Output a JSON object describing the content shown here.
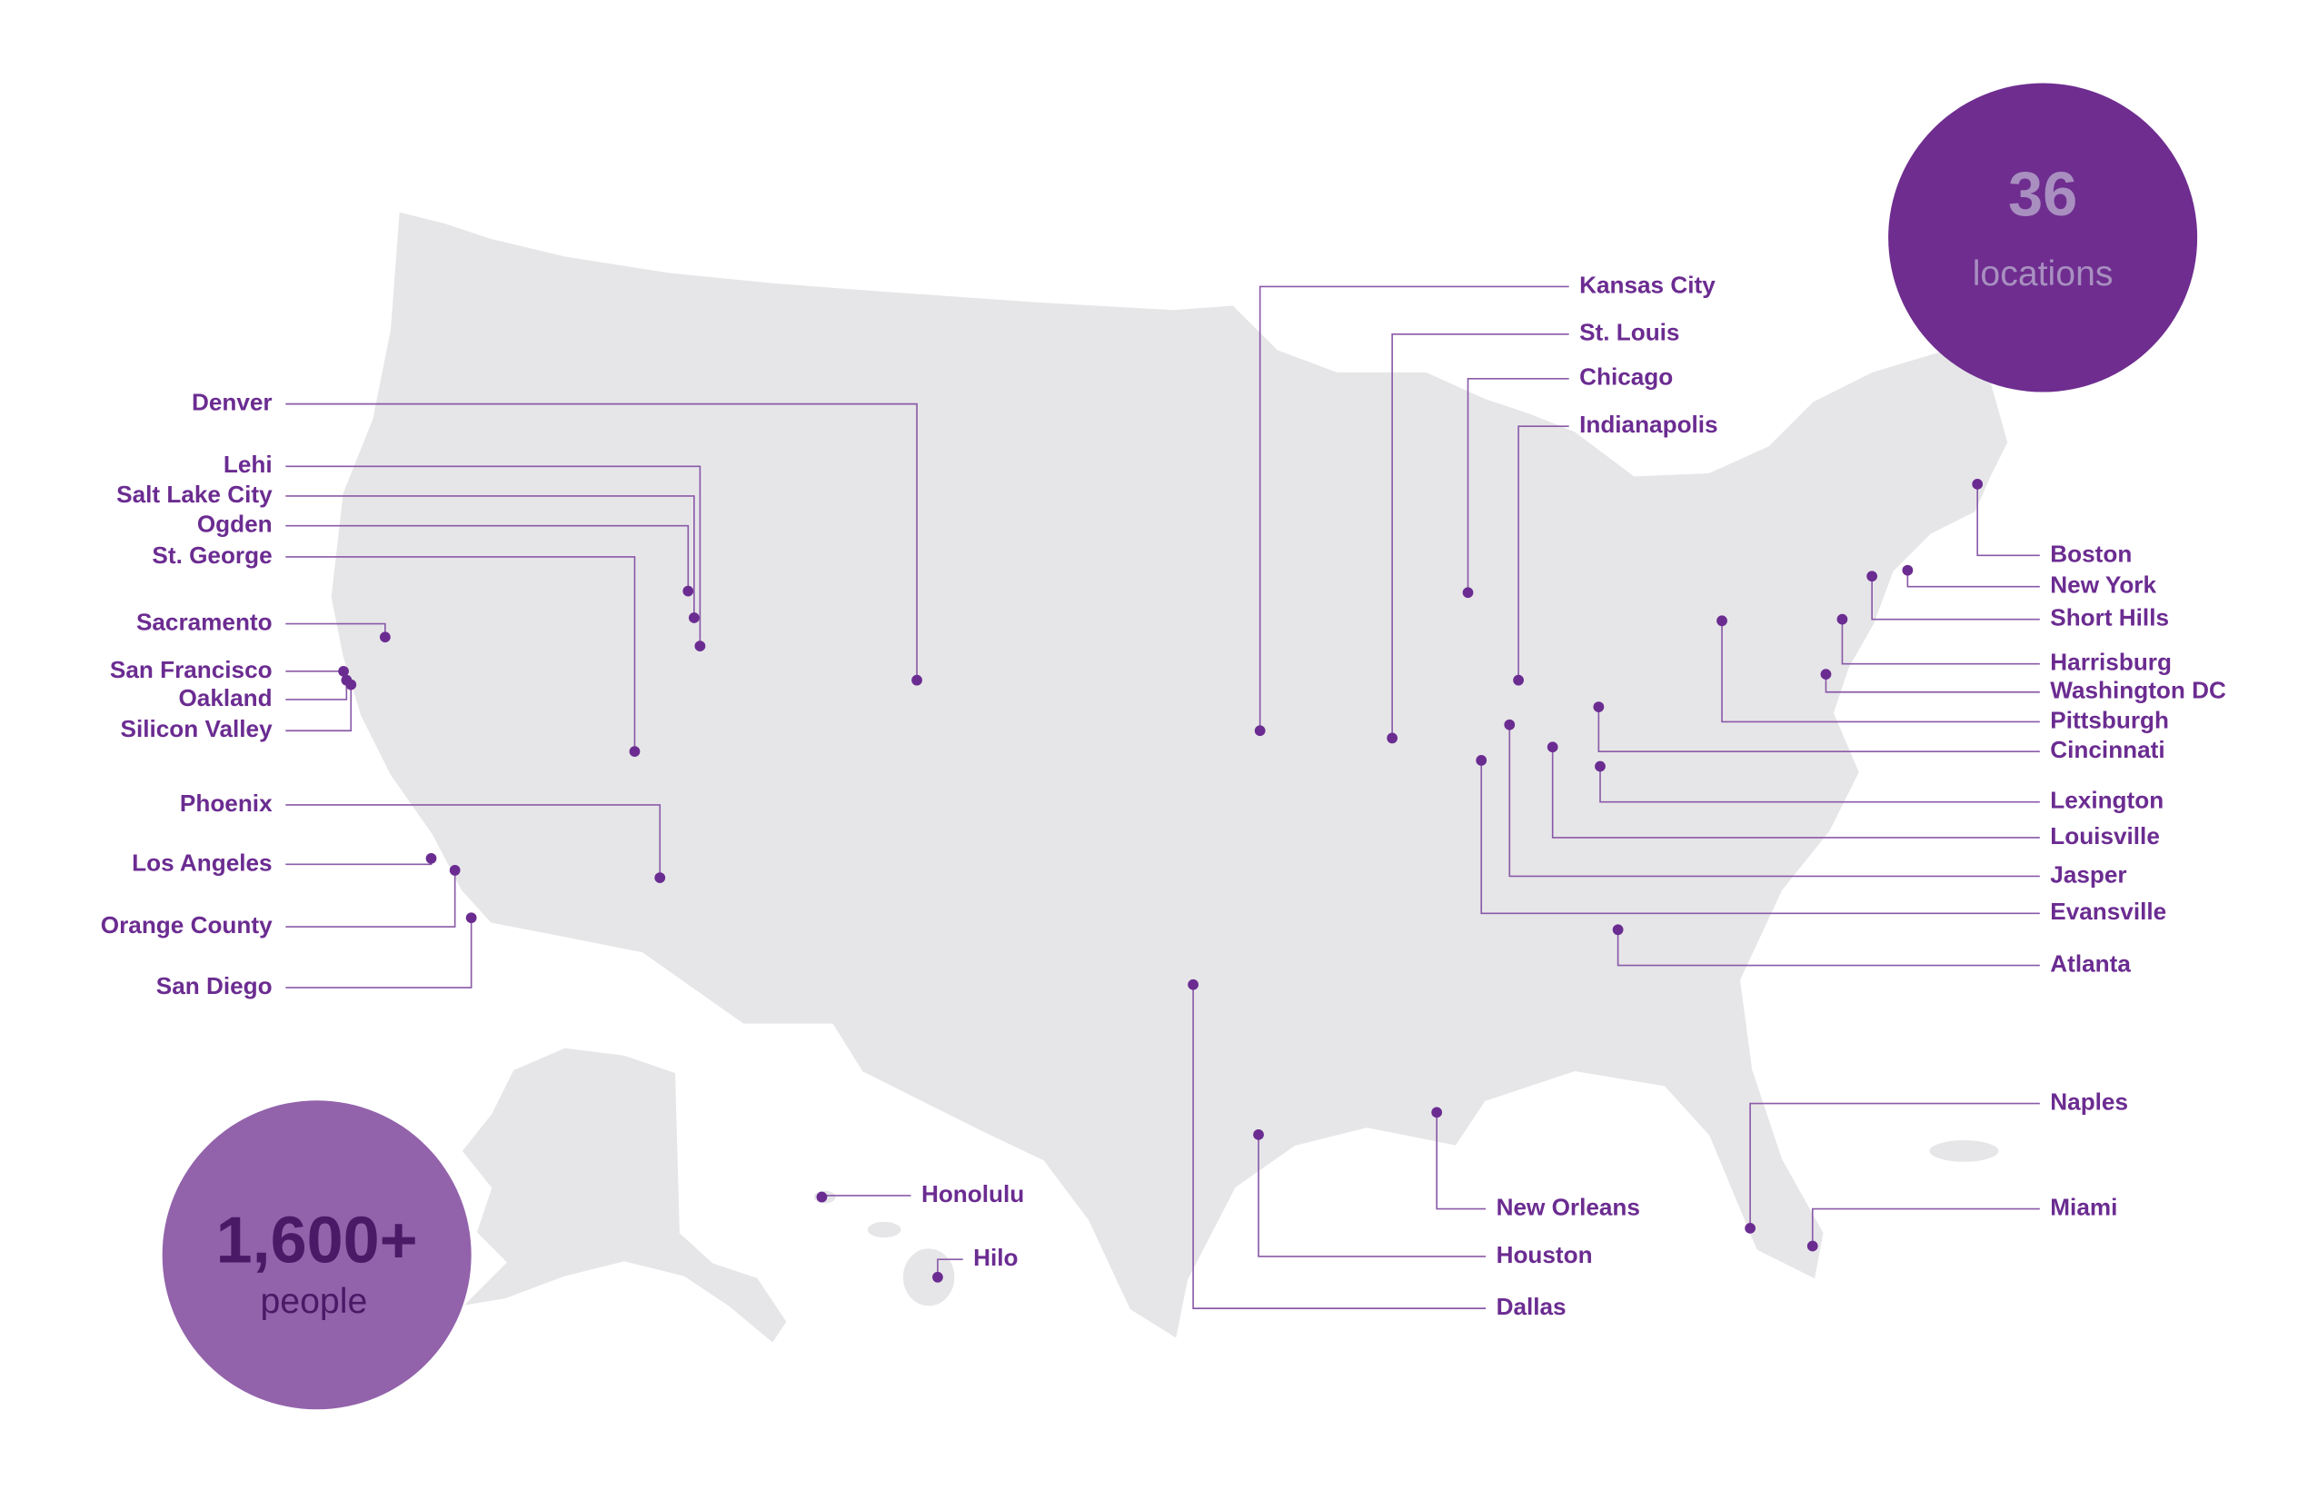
{
  "stats": {
    "locations_count": "36",
    "locations_label": "locations",
    "people_count": "1,600+",
    "people_label": "people"
  },
  "locations": [
    {
      "name": "Denver"
    },
    {
      "name": "Lehi"
    },
    {
      "name": "Salt Lake City"
    },
    {
      "name": "Ogden"
    },
    {
      "name": "St. George"
    },
    {
      "name": "Sacramento"
    },
    {
      "name": "San Francisco"
    },
    {
      "name": "Oakland"
    },
    {
      "name": "Silicon Valley"
    },
    {
      "name": "Phoenix"
    },
    {
      "name": "Los Angeles"
    },
    {
      "name": "Orange County"
    },
    {
      "name": "San Diego"
    },
    {
      "name": "Honolulu"
    },
    {
      "name": "Hilo"
    },
    {
      "name": "Kansas City"
    },
    {
      "name": "St. Louis"
    },
    {
      "name": "Chicago"
    },
    {
      "name": "Indianapolis"
    },
    {
      "name": "Boston"
    },
    {
      "name": "New York"
    },
    {
      "name": "Short Hills"
    },
    {
      "name": "Harrisburg"
    },
    {
      "name": "Washington DC"
    },
    {
      "name": "Pittsburgh"
    },
    {
      "name": "Cincinnati"
    },
    {
      "name": "Lexington"
    },
    {
      "name": "Louisville"
    },
    {
      "name": "Jasper"
    },
    {
      "name": "Evansville"
    },
    {
      "name": "Atlanta"
    },
    {
      "name": "Naples"
    },
    {
      "name": "Miami"
    },
    {
      "name": "New Orleans"
    },
    {
      "name": "Houston"
    },
    {
      "name": "Dallas"
    }
  ]
}
